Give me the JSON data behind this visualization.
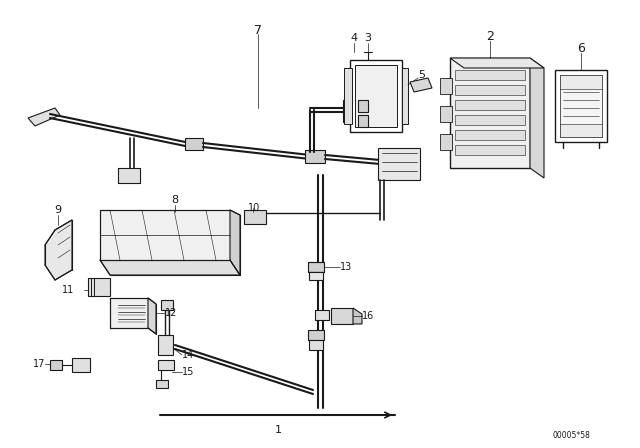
{
  "bg_color": "#ffffff",
  "line_color": "#1a1a1a",
  "diagram_code": "00005*58",
  "figsize": [
    6.4,
    4.48
  ],
  "dpi": 100
}
